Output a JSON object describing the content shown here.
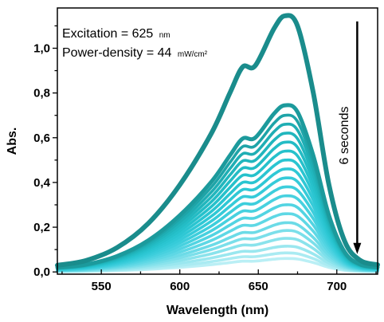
{
  "chart_data": {
    "type": "line",
    "title": "",
    "xlabel": "Wavelength (nm)",
    "ylabel": "Abs.",
    "xlim": [
      522,
      726
    ],
    "ylim": [
      -0.01,
      1.18
    ],
    "xticks": [
      550,
      600,
      650,
      700
    ],
    "yticks": [
      0.0,
      0.2,
      0.4,
      0.6,
      0.8,
      1.0
    ],
    "ytick_labels": [
      "0,0",
      "0,2",
      "0,4",
      "0,6",
      "0,8",
      "1,0"
    ],
    "grid": false,
    "legend": "none",
    "annotations": {
      "excitation_label": "Excitation = 625",
      "excitation_unit": "nm",
      "power_label": "Power-density = 44",
      "power_unit": "mW/cm²",
      "arrow_label": "6 seconds",
      "arrow_from_abs": 1.12,
      "arrow_to_abs": 0.08,
      "arrow_at_wavelength": 713
    },
    "x": [
      522,
      540,
      560,
      580,
      600,
      620,
      632,
      640,
      648,
      660,
      667,
      675,
      685,
      695,
      705,
      715,
      726
    ],
    "shape": [
      0.026,
      0.044,
      0.095,
      0.19,
      0.34,
      0.54,
      0.7,
      0.8,
      0.805,
      0.95,
      1.0,
      0.96,
      0.7,
      0.34,
      0.12,
      0.045,
      0.028
    ],
    "series": [
      {
        "peak": 1.145,
        "color": "#1a8c8c"
      },
      {
        "peak": 0.745,
        "color": "#1c9a9c"
      },
      {
        "peak": 0.7,
        "color": "#1ea4a8"
      },
      {
        "peak": 0.66,
        "color": "#1faeb4"
      },
      {
        "peak": 0.62,
        "color": "#21b6bd"
      },
      {
        "peak": 0.58,
        "color": "#23bcc5"
      },
      {
        "peak": 0.54,
        "color": "#26c1cb"
      },
      {
        "peak": 0.5,
        "color": "#2ac5d1"
      },
      {
        "peak": 0.46,
        "color": "#2fc8d5"
      },
      {
        "peak": 0.42,
        "color": "#36cbd9"
      },
      {
        "peak": 0.38,
        "color": "#3dcedc"
      },
      {
        "peak": 0.34,
        "color": "#47d1df"
      },
      {
        "peak": 0.3,
        "color": "#52d4e2"
      },
      {
        "peak": 0.26,
        "color": "#5ed8e5"
      },
      {
        "peak": 0.22,
        "color": "#6cdbe7"
      },
      {
        "peak": 0.185,
        "color": "#7bdfea"
      },
      {
        "peak": 0.15,
        "color": "#8ae3ec"
      },
      {
        "peak": 0.115,
        "color": "#9ae7ef"
      },
      {
        "peak": 0.085,
        "color": "#aaebf2"
      },
      {
        "peak": 0.06,
        "color": "#baeff5"
      }
    ]
  }
}
